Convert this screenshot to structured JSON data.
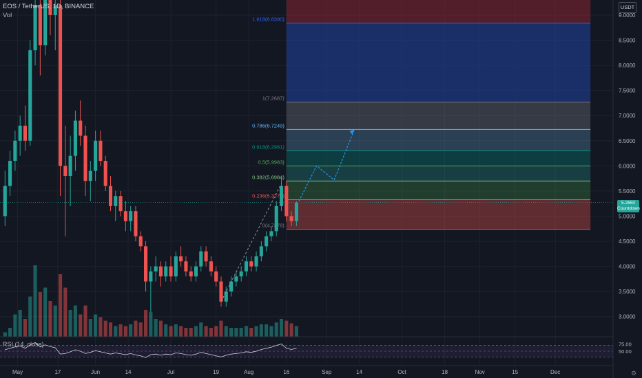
{
  "header": {
    "symbol": "EOS / TetherUS, 1D, BINANCE",
    "volume_label": "Vol"
  },
  "currency_button": "USDT",
  "rsi": {
    "label": "RSI (14, close)",
    "levels": [
      "75.00",
      "50.00"
    ],
    "upper": 70,
    "lower": 30
  },
  "current_price_tag": [
    "5.2650",
    "Countdown"
  ],
  "x_axis": [
    "May",
    "17",
    "Jun",
    "14",
    "Jul",
    "19",
    "Aug",
    "16",
    "Sep",
    "14",
    "Oct",
    "18",
    "Nov",
    "15",
    "Dec"
  ],
  "colors": {
    "background": "#131722",
    "up": "#26a69a",
    "down": "#ef5350",
    "grid": "#1e222d",
    "axis_text": "#b2b5be",
    "fib_blue": "#1e3a8a",
    "fib_red": "#7f1d1d",
    "projection": "#2196f3"
  },
  "chart_data": {
    "type": "candlestick",
    "title": "EOS / TetherUS, 1D, BINANCE",
    "y_axis": {
      "ticks": [
        9.0,
        8.5,
        8.0,
        7.5,
        7.0,
        6.5,
        6.0,
        5.5,
        5.0,
        4.5,
        4.0,
        3.5,
        3.0
      ],
      "tick_labels": [
        "9.0000",
        "8.5000",
        "8.0000",
        "7.5000",
        "7.0000",
        "6.5000",
        "6.0000",
        "5.5000",
        "5.0000",
        "4.5000",
        "4.0000",
        "3.5000",
        "3.0000"
      ],
      "range": [
        2.6,
        9.3
      ]
    },
    "candles": [
      {
        "d": "2021-04-26",
        "o": 5.0,
        "h": 5.9,
        "l": 4.8,
        "c": 5.6
      },
      {
        "d": "2021-04-28",
        "o": 5.6,
        "h": 6.3,
        "l": 5.4,
        "c": 6.1
      },
      {
        "d": "2021-04-30",
        "o": 6.1,
        "h": 6.7,
        "l": 5.9,
        "c": 6.5
      },
      {
        "d": "2021-05-02",
        "o": 6.5,
        "h": 7.0,
        "l": 6.2,
        "c": 6.8
      },
      {
        "d": "2021-05-04",
        "o": 6.8,
        "h": 7.2,
        "l": 6.3,
        "c": 6.5
      },
      {
        "d": "2021-05-06",
        "o": 6.5,
        "h": 8.5,
        "l": 6.4,
        "c": 8.3
      },
      {
        "d": "2021-05-08",
        "o": 8.3,
        "h": 9.4,
        "l": 8.0,
        "c": 9.2
      },
      {
        "d": "2021-05-10",
        "o": 9.2,
        "h": 9.6,
        "l": 7.8,
        "c": 8.4
      },
      {
        "d": "2021-05-12",
        "o": 8.4,
        "h": 9.6,
        "l": 8.2,
        "c": 9.4
      },
      {
        "d": "2021-05-14",
        "o": 9.4,
        "h": 9.8,
        "l": 8.6,
        "c": 9.0
      },
      {
        "d": "2021-05-16",
        "o": 9.0,
        "h": 9.5,
        "l": 8.3,
        "c": 9.2
      },
      {
        "d": "2021-05-18",
        "o": 9.2,
        "h": 9.5,
        "l": 5.4,
        "c": 6.0
      },
      {
        "d": "2021-05-20",
        "o": 6.0,
        "h": 6.8,
        "l": 4.6,
        "c": 5.8
      },
      {
        "d": "2021-05-22",
        "o": 5.8,
        "h": 6.6,
        "l": 5.2,
        "c": 6.2
      },
      {
        "d": "2021-05-24",
        "o": 6.2,
        "h": 7.1,
        "l": 5.9,
        "c": 6.9
      },
      {
        "d": "2021-05-26",
        "o": 6.9,
        "h": 7.3,
        "l": 6.4,
        "c": 6.6
      },
      {
        "d": "2021-05-28",
        "o": 6.6,
        "h": 6.8,
        "l": 5.4,
        "c": 5.7
      },
      {
        "d": "2021-05-30",
        "o": 5.7,
        "h": 6.1,
        "l": 5.3,
        "c": 5.9
      },
      {
        "d": "2021-06-01",
        "o": 5.9,
        "h": 6.7,
        "l": 5.7,
        "c": 6.5
      },
      {
        "d": "2021-06-03",
        "o": 6.5,
        "h": 6.7,
        "l": 6.0,
        "c": 6.1
      },
      {
        "d": "2021-06-05",
        "o": 6.1,
        "h": 6.2,
        "l": 5.5,
        "c": 5.6
      },
      {
        "d": "2021-06-07",
        "o": 5.6,
        "h": 5.8,
        "l": 5.1,
        "c": 5.2
      },
      {
        "d": "2021-06-09",
        "o": 5.2,
        "h": 5.5,
        "l": 4.9,
        "c": 5.4
      },
      {
        "d": "2021-06-11",
        "o": 5.4,
        "h": 5.5,
        "l": 5.0,
        "c": 5.1
      },
      {
        "d": "2021-06-13",
        "o": 5.1,
        "h": 5.3,
        "l": 4.7,
        "c": 4.9
      },
      {
        "d": "2021-06-15",
        "o": 4.9,
        "h": 5.2,
        "l": 4.7,
        "c": 5.1
      },
      {
        "d": "2021-06-17",
        "o": 5.1,
        "h": 5.2,
        "l": 4.5,
        "c": 4.6
      },
      {
        "d": "2021-06-19",
        "o": 4.6,
        "h": 4.7,
        "l": 4.3,
        "c": 4.4
      },
      {
        "d": "2021-06-21",
        "o": 4.4,
        "h": 4.5,
        "l": 3.5,
        "c": 3.7
      },
      {
        "d": "2021-06-23",
        "o": 3.7,
        "h": 4.0,
        "l": 3.1,
        "c": 3.9
      },
      {
        "d": "2021-06-25",
        "o": 3.9,
        "h": 4.2,
        "l": 3.7,
        "c": 4.0
      },
      {
        "d": "2021-06-27",
        "o": 4.0,
        "h": 4.1,
        "l": 3.6,
        "c": 3.8
      },
      {
        "d": "2021-06-29",
        "o": 3.8,
        "h": 4.1,
        "l": 3.7,
        "c": 4.0
      },
      {
        "d": "2021-07-01",
        "o": 4.0,
        "h": 4.2,
        "l": 3.7,
        "c": 3.8
      },
      {
        "d": "2021-07-03",
        "o": 3.8,
        "h": 4.3,
        "l": 3.7,
        "c": 4.2
      },
      {
        "d": "2021-07-05",
        "o": 4.2,
        "h": 4.4,
        "l": 4.0,
        "c": 4.1
      },
      {
        "d": "2021-07-07",
        "o": 4.1,
        "h": 4.2,
        "l": 3.8,
        "c": 3.9
      },
      {
        "d": "2021-07-09",
        "o": 3.9,
        "h": 4.0,
        "l": 3.7,
        "c": 3.8
      },
      {
        "d": "2021-07-11",
        "o": 3.8,
        "h": 4.1,
        "l": 3.7,
        "c": 4.0
      },
      {
        "d": "2021-07-13",
        "o": 4.0,
        "h": 4.4,
        "l": 3.9,
        "c": 4.3
      },
      {
        "d": "2021-07-15",
        "o": 4.3,
        "h": 4.4,
        "l": 4.0,
        "c": 4.1
      },
      {
        "d": "2021-07-17",
        "o": 4.1,
        "h": 4.2,
        "l": 3.8,
        "c": 3.9
      },
      {
        "d": "2021-07-19",
        "o": 3.9,
        "h": 4.0,
        "l": 3.6,
        "c": 3.7
      },
      {
        "d": "2021-07-21",
        "o": 3.7,
        "h": 3.8,
        "l": 3.2,
        "c": 3.3
      },
      {
        "d": "2021-07-23",
        "o": 3.3,
        "h": 3.6,
        "l": 3.2,
        "c": 3.5
      },
      {
        "d": "2021-07-25",
        "o": 3.5,
        "h": 3.8,
        "l": 3.4,
        "c": 3.7
      },
      {
        "d": "2021-07-27",
        "o": 3.7,
        "h": 3.9,
        "l": 3.6,
        "c": 3.8
      },
      {
        "d": "2021-07-29",
        "o": 3.8,
        "h": 4.0,
        "l": 3.7,
        "c": 3.9
      },
      {
        "d": "2021-07-31",
        "o": 3.9,
        "h": 4.2,
        "l": 3.8,
        "c": 4.1
      },
      {
        "d": "2021-08-02",
        "o": 4.1,
        "h": 4.2,
        "l": 3.9,
        "c": 4.0
      },
      {
        "d": "2021-08-04",
        "o": 4.0,
        "h": 4.3,
        "l": 3.9,
        "c": 4.2
      },
      {
        "d": "2021-08-06",
        "o": 4.2,
        "h": 4.5,
        "l": 4.1,
        "c": 4.4
      },
      {
        "d": "2021-08-08",
        "o": 4.4,
        "h": 4.7,
        "l": 4.3,
        "c": 4.6
      },
      {
        "d": "2021-08-10",
        "o": 4.6,
        "h": 4.8,
        "l": 4.5,
        "c": 4.7
      },
      {
        "d": "2021-08-12",
        "o": 4.7,
        "h": 5.3,
        "l": 4.6,
        "c": 5.2
      },
      {
        "d": "2021-08-14",
        "o": 5.2,
        "h": 5.8,
        "l": 5.1,
        "c": 5.6
      },
      {
        "d": "2021-08-16",
        "o": 5.6,
        "h": 5.7,
        "l": 4.9,
        "c": 5.0
      },
      {
        "d": "2021-08-18",
        "o": 5.0,
        "h": 5.1,
        "l": 4.8,
        "c": 4.9
      },
      {
        "d": "2021-08-20",
        "o": 4.9,
        "h": 5.3,
        "l": 4.8,
        "c": 5.27
      }
    ],
    "volume": [
      0.05,
      0.1,
      0.25,
      0.3,
      0.2,
      0.45,
      0.8,
      0.5,
      0.55,
      0.4,
      0.35,
      0.7,
      0.55,
      0.3,
      0.35,
      0.25,
      0.35,
      0.2,
      0.25,
      0.22,
      0.18,
      0.16,
      0.12,
      0.14,
      0.12,
      0.14,
      0.18,
      0.16,
      0.3,
      0.28,
      0.2,
      0.18,
      0.14,
      0.12,
      0.14,
      0.12,
      0.1,
      0.1,
      0.12,
      0.16,
      0.12,
      0.1,
      0.12,
      0.18,
      0.12,
      0.1,
      0.1,
      0.1,
      0.12,
      0.1,
      0.12,
      0.14,
      0.14,
      0.12,
      0.16,
      0.2,
      0.18,
      0.15,
      0.12
    ],
    "rsi": [
      55,
      60,
      65,
      68,
      60,
      72,
      80,
      65,
      72,
      66,
      62,
      40,
      42,
      48,
      55,
      50,
      42,
      46,
      52,
      48,
      44,
      40,
      44,
      41,
      38,
      42,
      37,
      34,
      28,
      38,
      40,
      36,
      40,
      38,
      44,
      42,
      38,
      36,
      40,
      46,
      42,
      38,
      34,
      30,
      36,
      40,
      42,
      44,
      48,
      46,
      50,
      56,
      60,
      64,
      70,
      75,
      60,
      56,
      60
    ],
    "fibonacci": {
      "levels": [
        {
          "ratio": 0,
          "price": 4.7378,
          "label": "0(4.7378)"
        },
        {
          "ratio": 0.236,
          "price": 5.3279,
          "label": "0.236(5.3279)"
        },
        {
          "ratio": 0.382,
          "price": 5.6984,
          "label": "0.382(5.6984)"
        },
        {
          "ratio": 0.5,
          "price": 5.9983,
          "label": "0.5(5.9983)"
        },
        {
          "ratio": 0.618,
          "price": 6.2981,
          "label": "0.618(6.2981)"
        },
        {
          "ratio": 0.786,
          "price": 6.7249,
          "label": "0.786(6.7249)"
        },
        {
          "ratio": 1,
          "price": 7.2687,
          "label": "1(7.2687)"
        },
        {
          "ratio": 1.618,
          "price": 8.839,
          "label": "1.618(8.8390)"
        }
      ],
      "start_date": "2021-08-16",
      "end_date": "2021-12-15"
    },
    "projection_path": [
      {
        "d": "2021-08-21",
        "p": 5.3
      },
      {
        "d": "2021-08-28",
        "p": 6.0
      },
      {
        "d": "2021-09-04",
        "p": 5.72
      },
      {
        "d": "2021-09-12",
        "p": 6.72
      }
    ],
    "trend_line": [
      {
        "d": "2021-07-21",
        "p": 3.3
      },
      {
        "d": "2021-08-14",
        "p": 5.65
      }
    ]
  }
}
